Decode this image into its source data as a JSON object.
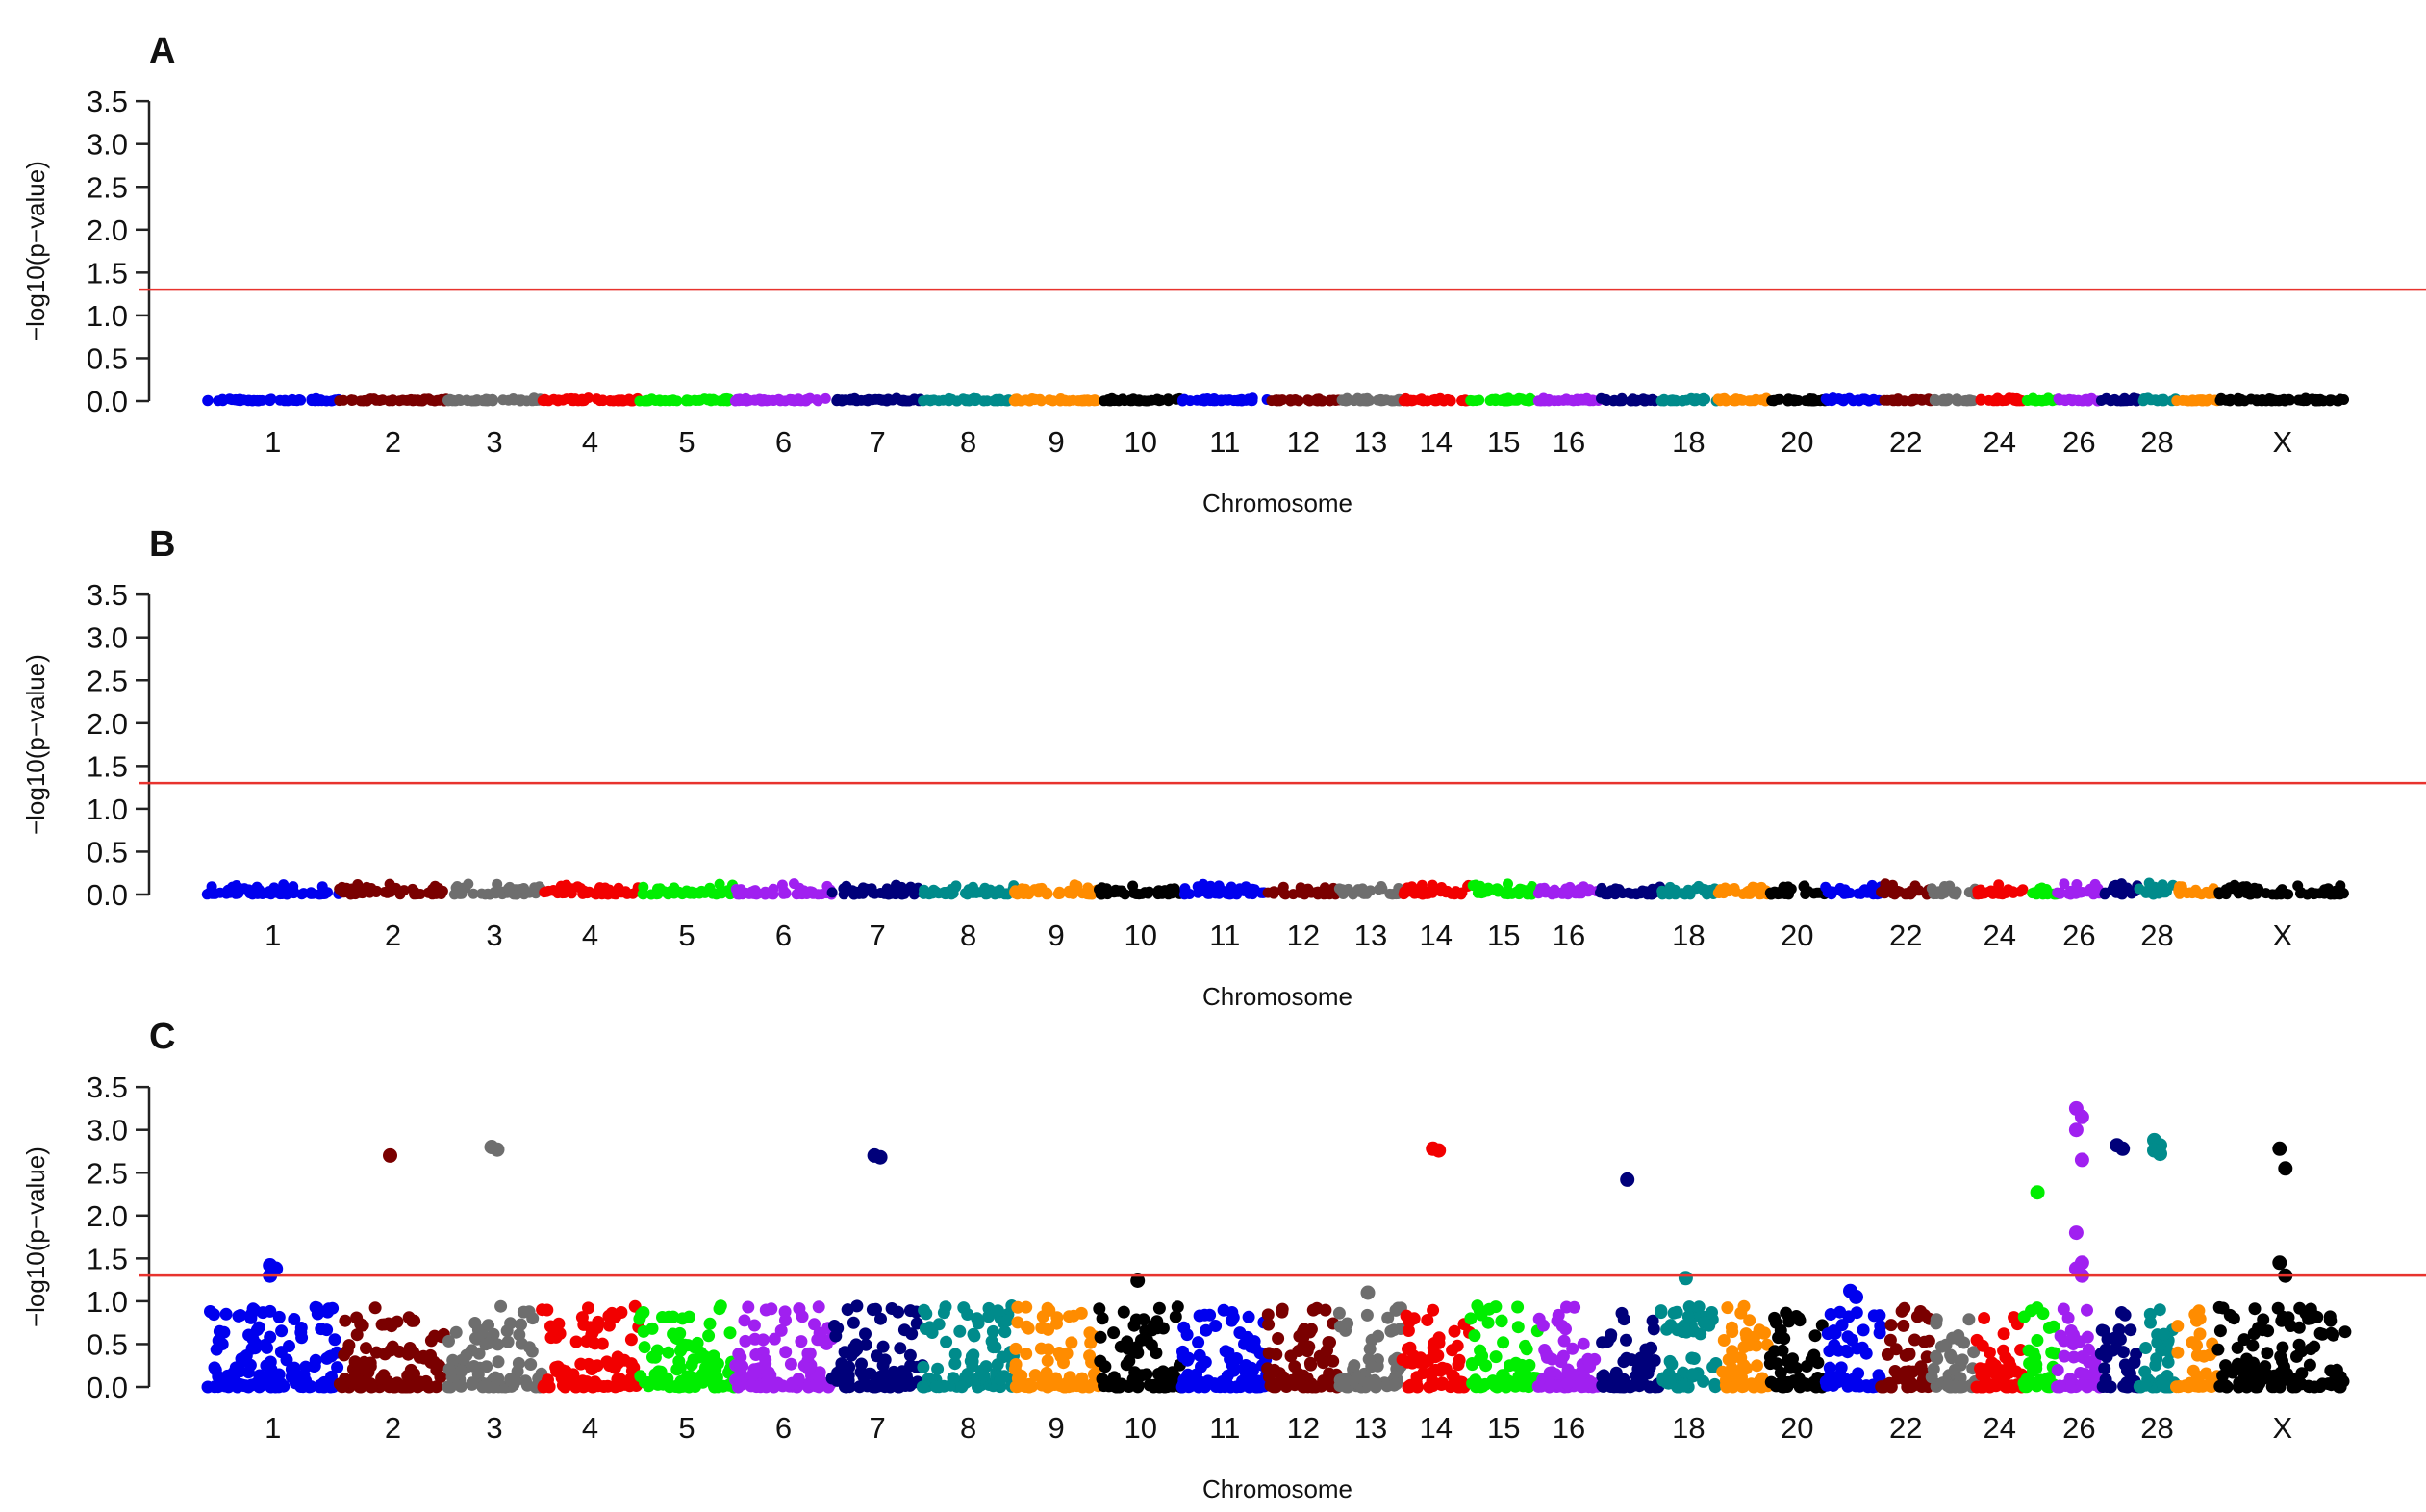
{
  "chart_data": [
    {
      "type": "scatter",
      "panel": "A",
      "title": "",
      "xlabel": "Chromosome",
      "ylabel": "−log10(p−value)",
      "ylim": [
        0,
        3.5
      ],
      "yticks": [
        "0.0",
        "0.5",
        "1.0",
        "1.5",
        "2.0",
        "2.5",
        "3.0",
        "3.5"
      ],
      "threshold": 1.3,
      "xtick_labels": [
        "1",
        "2",
        "3",
        "4",
        "5",
        "6",
        "7",
        "8",
        "9",
        "10",
        "11",
        "12",
        "13",
        "14",
        "15",
        "16",
        "18",
        "20",
        "22",
        "24",
        "26",
        "28",
        "X"
      ],
      "grid": false,
      "background_max": 0.04,
      "peaks": []
    },
    {
      "type": "scatter",
      "panel": "B",
      "title": "",
      "xlabel": "Chromosome",
      "ylabel": "−log10(p−value)",
      "ylim": [
        0,
        3.5
      ],
      "yticks": [
        "0.0",
        "0.5",
        "1.0",
        "1.5",
        "2.0",
        "2.5",
        "3.0",
        "3.5"
      ],
      "threshold": 1.3,
      "xtick_labels": [
        "1",
        "2",
        "3",
        "4",
        "5",
        "6",
        "7",
        "8",
        "9",
        "10",
        "11",
        "12",
        "13",
        "14",
        "15",
        "16",
        "18",
        "20",
        "22",
        "24",
        "26",
        "28",
        "X"
      ],
      "grid": false,
      "background_max": 0.14,
      "peaks": []
    },
    {
      "type": "scatter",
      "panel": "C",
      "title": "",
      "xlabel": "Chromosome",
      "ylabel": "−log10(p−value)",
      "ylim": [
        0,
        3.5
      ],
      "yticks": [
        "0.0",
        "0.5",
        "1.0",
        "1.5",
        "2.0",
        "2.5",
        "3.0",
        "3.5"
      ],
      "threshold": 1.3,
      "xtick_labels": [
        "1",
        "2",
        "3",
        "4",
        "5",
        "6",
        "7",
        "8",
        "9",
        "10",
        "11",
        "12",
        "13",
        "14",
        "15",
        "16",
        "18",
        "20",
        "22",
        "24",
        "26",
        "28",
        "X"
      ],
      "grid": false,
      "background_max": 0.95,
      "peaks": [
        {
          "chromosome": "1",
          "values": [
            1.42,
            1.38,
            1.3
          ]
        },
        {
          "chromosome": "2",
          "values": [
            2.7
          ]
        },
        {
          "chromosome": "3",
          "values": [
            2.8,
            2.77
          ]
        },
        {
          "chromosome": "7",
          "values": [
            2.7,
            2.68
          ]
        },
        {
          "chromosome": "10",
          "values": [
            1.24
          ]
        },
        {
          "chromosome": "13",
          "values": [
            1.1
          ]
        },
        {
          "chromosome": "14",
          "values": [
            2.78,
            2.76
          ]
        },
        {
          "chromosome": "17",
          "values": [
            2.42
          ]
        },
        {
          "chromosome": "18",
          "values": [
            1.27
          ]
        },
        {
          "chromosome": "21",
          "values": [
            1.12,
            1.05
          ]
        },
        {
          "chromosome": "25",
          "values": [
            2.27
          ]
        },
        {
          "chromosome": "26",
          "values": [
            3.25,
            3.15,
            3.0,
            2.65,
            1.8,
            1.45,
            1.38,
            1.3
          ]
        },
        {
          "chromosome": "27",
          "values": [
            2.82,
            2.78
          ]
        },
        {
          "chromosome": "28",
          "values": [
            2.88,
            2.82,
            2.76,
            2.72
          ]
        },
        {
          "chromosome": "X",
          "values": [
            2.78,
            2.55,
            1.45,
            1.3
          ]
        }
      ]
    }
  ],
  "colors": {
    "threshold": "#e8332e",
    "axis": "#222222",
    "chromosome_cycle": [
      "#0000ee",
      "#7a0000",
      "#6e6e6e",
      "#f20000",
      "#00ee00",
      "#a020f0",
      "#00007a",
      "#008b8b",
      "#ff8c00",
      "#000000"
    ]
  }
}
